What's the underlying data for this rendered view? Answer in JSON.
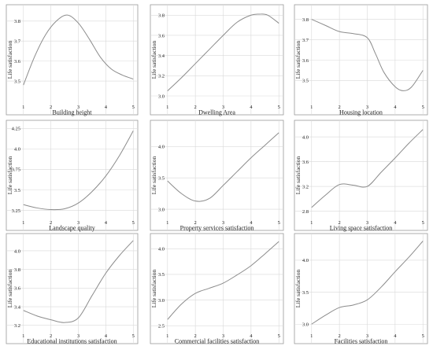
{
  "chart_data": [
    {
      "type": "line",
      "xlabel": "Building height",
      "ylabel": "Life satisfaction",
      "xticks": [
        1,
        2,
        3,
        4,
        5
      ],
      "yticks": [
        3.5,
        3.6,
        3.7,
        3.8
      ],
      "xlim": [
        0.95,
        5.05
      ],
      "ylim": [
        3.39,
        3.87
      ],
      "x": [
        1,
        1.4,
        1.8,
        2.2,
        2.6,
        3.0,
        3.4,
        3.8,
        4.2,
        4.6,
        5
      ],
      "y": [
        3.48,
        3.62,
        3.73,
        3.8,
        3.83,
        3.79,
        3.71,
        3.62,
        3.56,
        3.53,
        3.51
      ]
    },
    {
      "type": "line",
      "xlabel": "Dwelling Area",
      "ylabel": "Life satisfaction",
      "xticks": [
        1,
        2,
        3,
        4,
        5
      ],
      "yticks": [
        3.0,
        3.2,
        3.4,
        3.6,
        3.8
      ],
      "xlim": [
        0.95,
        5.05
      ],
      "ylim": [
        2.93,
        3.88
      ],
      "x": [
        1,
        1.5,
        2,
        2.5,
        3,
        3.5,
        4,
        4.3,
        4.6,
        5
      ],
      "y": [
        3.05,
        3.18,
        3.32,
        3.46,
        3.6,
        3.73,
        3.8,
        3.81,
        3.8,
        3.72
      ]
    },
    {
      "type": "line",
      "xlabel": "Housing location",
      "ylabel": "Life satisfaction",
      "xticks": [
        1,
        2,
        3,
        4,
        5
      ],
      "yticks": [
        3.5,
        3.6,
        3.7,
        3.8
      ],
      "xlim": [
        0.95,
        5.05
      ],
      "ylim": [
        3.39,
        3.86
      ],
      "x": [
        1,
        1.5,
        2,
        2.5,
        3,
        3.3,
        3.6,
        4,
        4.3,
        4.6,
        5
      ],
      "y": [
        3.8,
        3.77,
        3.74,
        3.73,
        3.71,
        3.63,
        3.54,
        3.47,
        3.45,
        3.47,
        3.55
      ]
    },
    {
      "type": "line",
      "xlabel": "Landscape quality",
      "ylabel": "Life satisfaction",
      "xticks": [
        1,
        2,
        3,
        4,
        5
      ],
      "yticks": [
        3.25,
        3.5,
        3.75,
        4.0,
        4.25
      ],
      "xlim": [
        0.95,
        5.05
      ],
      "ylim": [
        3.15,
        4.32
      ],
      "x": [
        1,
        1.5,
        2,
        2.5,
        3,
        3.5,
        4,
        4.5,
        5
      ],
      "y": [
        3.32,
        3.28,
        3.26,
        3.27,
        3.34,
        3.48,
        3.67,
        3.92,
        4.22
      ]
    },
    {
      "type": "line",
      "xlabel": "Property services satisfaction",
      "ylabel": "Life satisfaction",
      "xticks": [
        1,
        2,
        3,
        4,
        5
      ],
      "yticks": [
        3.0,
        3.5,
        4.0
      ],
      "xlim": [
        0.95,
        5.05
      ],
      "ylim": [
        2.85,
        4.38
      ],
      "x": [
        1,
        1.5,
        2,
        2.5,
        3,
        3.5,
        4,
        4.5,
        5
      ],
      "y": [
        3.45,
        3.25,
        3.13,
        3.17,
        3.38,
        3.6,
        3.82,
        4.02,
        4.22
      ]
    },
    {
      "type": "line",
      "xlabel": "Living space satisfaction",
      "ylabel": "Life satisfaction",
      "xticks": [
        1,
        2,
        3,
        4,
        5
      ],
      "yticks": [
        2.8,
        3.2,
        3.6,
        4.0
      ],
      "xlim": [
        0.95,
        5.05
      ],
      "ylim": [
        2.68,
        4.23
      ],
      "x": [
        1,
        1.5,
        2,
        2.5,
        3,
        3.5,
        4,
        4.5,
        5
      ],
      "y": [
        2.86,
        3.06,
        3.23,
        3.22,
        3.2,
        3.43,
        3.66,
        3.9,
        4.12
      ]
    },
    {
      "type": "line",
      "xlabel": "Educational institutions satisfaction",
      "ylabel": "Life satisfaction",
      "xticks": [
        1,
        2,
        3,
        4,
        5
      ],
      "yticks": [
        3.2,
        3.4,
        3.6,
        3.8,
        4.0
      ],
      "xlim": [
        0.95,
        5.05
      ],
      "ylim": [
        3.13,
        4.16
      ],
      "x": [
        1,
        1.5,
        2,
        2.5,
        3,
        3.5,
        4,
        4.5,
        5
      ],
      "y": [
        3.36,
        3.3,
        3.26,
        3.23,
        3.28,
        3.52,
        3.76,
        3.95,
        4.11
      ]
    },
    {
      "type": "line",
      "xlabel": "Commercial facilities satisfaction",
      "ylabel": "Life satisfaction",
      "xticks": [
        1,
        2,
        3,
        4,
        5
      ],
      "yticks": [
        2.5,
        3.0,
        3.5,
        4.0
      ],
      "xlim": [
        0.95,
        5.05
      ],
      "ylim": [
        2.38,
        4.25
      ],
      "x": [
        1,
        1.5,
        2,
        2.5,
        3,
        3.5,
        4,
        4.5,
        5
      ],
      "y": [
        2.62,
        2.92,
        3.13,
        3.23,
        3.33,
        3.49,
        3.67,
        3.9,
        4.14
      ]
    },
    {
      "type": "line",
      "xlabel": "Facilities satisfaction",
      "ylabel": "Life satisfaction",
      "xticks": [
        1,
        2,
        3,
        4,
        5
      ],
      "yticks": [
        3.0,
        3.5,
        4.0
      ],
      "xlim": [
        0.95,
        5.05
      ],
      "ylim": [
        2.88,
        4.38
      ],
      "x": [
        1,
        1.5,
        2,
        2.5,
        3,
        3.5,
        4,
        4.5,
        5
      ],
      "y": [
        3.0,
        3.14,
        3.26,
        3.3,
        3.38,
        3.58,
        3.82,
        4.05,
        4.3
      ]
    }
  ]
}
